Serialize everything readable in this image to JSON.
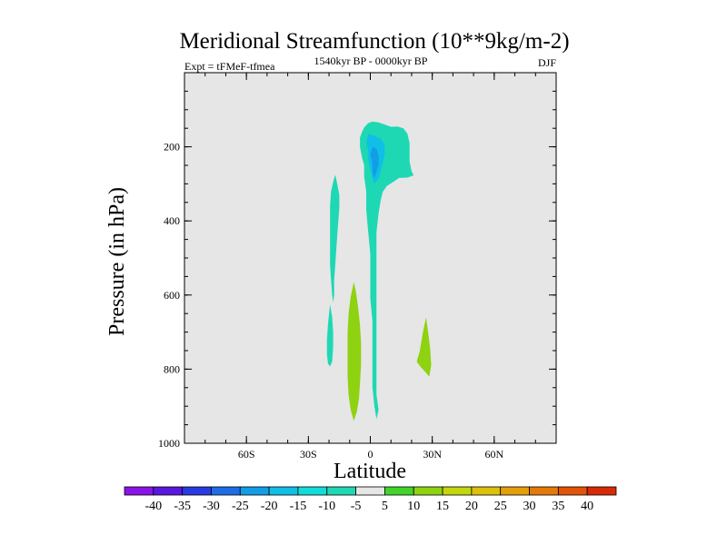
{
  "chart_data": {
    "type": "contour",
    "title": "Meridional Streamfunction (10**9kg/m-2)",
    "left_label": "Expt = tFMeF-tfmea",
    "center_label": "1540kyr BP - 0000kyr BP",
    "right_label": "DJF",
    "xlabel": "Latitude",
    "ylabel": "Pressure (in hPa)",
    "xlim": [
      -90,
      90
    ],
    "ylim": [
      1000,
      0
    ],
    "x_ticks": [
      {
        "value": -60,
        "label": "60S"
      },
      {
        "value": -30,
        "label": "30S"
      },
      {
        "value": 0,
        "label": "0"
      },
      {
        "value": 30,
        "label": "30N"
      },
      {
        "value": 60,
        "label": "60N"
      }
    ],
    "y_ticks": [
      {
        "value": 200,
        "label": "200"
      },
      {
        "value": 400,
        "label": "400"
      },
      {
        "value": 600,
        "label": "600"
      },
      {
        "value": 800,
        "label": "800"
      },
      {
        "value": 1000,
        "label": "1000"
      }
    ],
    "y_minor_step": 50,
    "x_minor_step": 10,
    "background_color": "#e6e6e6",
    "colorbar": {
      "levels": [
        "-40",
        "-35",
        "-30",
        "-25",
        "-20",
        "-15",
        "-10",
        "-5",
        "5",
        "10",
        "15",
        "20",
        "25",
        "30",
        "35",
        "40"
      ],
      "colors": [
        "#8a14e8",
        "#5a17e0",
        "#2a3ae2",
        "#1e6de8",
        "#129de6",
        "#10bfe6",
        "#12dcd8",
        "#1ed8b4",
        "#e6e6e6",
        "#42d42a",
        "#8ed212",
        "#c4d60e",
        "#dcc00c",
        "#e4a00a",
        "#e47a0a",
        "#e25408",
        "#d82a06"
      ]
    },
    "regions": [
      {
        "name": "upper-tropical-cell",
        "value": -7,
        "color": "#1ed8b4",
        "points": [
          [
            -3,
            148
          ],
          [
            -1,
            136
          ],
          [
            1,
            132
          ],
          [
            4,
            134
          ],
          [
            7,
            140
          ],
          [
            10,
            146
          ],
          [
            13,
            145
          ],
          [
            16,
            150
          ],
          [
            18,
            165
          ],
          [
            19,
            190
          ],
          [
            19,
            215
          ],
          [
            19,
            240
          ],
          [
            20,
            266
          ],
          [
            21,
            277
          ],
          [
            18,
            283
          ],
          [
            14,
            284
          ],
          [
            11,
            295
          ],
          [
            8,
            306
          ],
          [
            6,
            322
          ],
          [
            5,
            345
          ],
          [
            4,
            380
          ],
          [
            3,
            430
          ],
          [
            3,
            480
          ],
          [
            3,
            530
          ],
          [
            3,
            580
          ],
          [
            3,
            640
          ],
          [
            3,
            700
          ],
          [
            3,
            760
          ],
          [
            3,
            820
          ],
          [
            3,
            870
          ],
          [
            4,
            910
          ],
          [
            3,
            935
          ],
          [
            2,
            900
          ],
          [
            1,
            850
          ],
          [
            1,
            790
          ],
          [
            1,
            730
          ],
          [
            1,
            670
          ],
          [
            0,
            610
          ],
          [
            0,
            550
          ],
          [
            0,
            490
          ],
          [
            -1,
            430
          ],
          [
            -2,
            370
          ],
          [
            -2,
            320
          ],
          [
            -3,
            280
          ],
          [
            -3,
            250
          ],
          [
            -4,
            230
          ],
          [
            -5,
            200
          ],
          [
            -5,
            175
          ],
          [
            -4,
            160
          ]
        ]
      },
      {
        "name": "upper-core",
        "value": -12,
        "color": "#10bfe6",
        "points": [
          [
            -1,
            165
          ],
          [
            2,
            170
          ],
          [
            5,
            178
          ],
          [
            7,
            195
          ],
          [
            7,
            220
          ],
          [
            6,
            245
          ],
          [
            5,
            265
          ],
          [
            4,
            285
          ],
          [
            2,
            300
          ],
          [
            1,
            285
          ],
          [
            0,
            260
          ],
          [
            -1,
            235
          ],
          [
            -1,
            210
          ],
          [
            -2,
            190
          ]
        ]
      },
      {
        "name": "upper-core-inner",
        "value": -17,
        "color": "#129de6",
        "points": [
          [
            1,
            200
          ],
          [
            3,
            205
          ],
          [
            4,
            225
          ],
          [
            4,
            248
          ],
          [
            3,
            268
          ],
          [
            2,
            285
          ],
          [
            1,
            268
          ],
          [
            1,
            245
          ],
          [
            0,
            222
          ]
        ]
      },
      {
        "name": "sh-upper-filament",
        "value": -7,
        "color": "#1ed8b4",
        "points": [
          [
            -17,
            275
          ],
          [
            -16,
            300
          ],
          [
            -15,
            330
          ],
          [
            -15,
            365
          ],
          [
            -15.5,
            400
          ],
          [
            -16,
            440
          ],
          [
            -16.5,
            480
          ],
          [
            -17,
            520
          ],
          [
            -17.5,
            560
          ],
          [
            -17.5,
            600
          ],
          [
            -18,
            620
          ],
          [
            -18.5,
            600
          ],
          [
            -19,
            560
          ],
          [
            -19.5,
            520
          ],
          [
            -19.5,
            480
          ],
          [
            -19.5,
            440
          ],
          [
            -19.5,
            400
          ],
          [
            -19.5,
            360
          ],
          [
            -19,
            320
          ],
          [
            -18,
            295
          ]
        ]
      },
      {
        "name": "sh-lower-filament",
        "value": -7,
        "color": "#1ed8b4",
        "points": [
          [
            -19.5,
            625
          ],
          [
            -18.5,
            660
          ],
          [
            -18,
            700
          ],
          [
            -18,
            740
          ],
          [
            -18.5,
            780
          ],
          [
            -19.5,
            793
          ],
          [
            -20.5,
            785
          ],
          [
            -21,
            760
          ],
          [
            -21,
            720
          ],
          [
            -20.5,
            680
          ],
          [
            -20,
            650
          ]
        ]
      },
      {
        "name": "tropical-positive-cell",
        "value": 7,
        "color": "#8ed212",
        "points": [
          [
            -8,
            565
          ],
          [
            -7,
            590
          ],
          [
            -6,
            630
          ],
          [
            -5,
            680
          ],
          [
            -4.5,
            730
          ],
          [
            -4.5,
            790
          ],
          [
            -5,
            840
          ],
          [
            -5.5,
            880
          ],
          [
            -6.5,
            915
          ],
          [
            -8,
            940
          ],
          [
            -9.5,
            910
          ],
          [
            -10.5,
            870
          ],
          [
            -11,
            820
          ],
          [
            -11,
            760
          ],
          [
            -11,
            700
          ],
          [
            -10.5,
            650
          ],
          [
            -9.5,
            605
          ]
        ]
      },
      {
        "name": "nh-positive-blob",
        "value": 7,
        "color": "#8ed212",
        "points": [
          [
            27,
            660
          ],
          [
            28,
            700
          ],
          [
            29,
            745
          ],
          [
            29.5,
            790
          ],
          [
            28.5,
            820
          ],
          [
            27,
            810
          ],
          [
            24.5,
            795
          ],
          [
            22.5,
            780
          ],
          [
            24,
            750
          ],
          [
            25.5,
            700
          ]
        ]
      }
    ]
  }
}
